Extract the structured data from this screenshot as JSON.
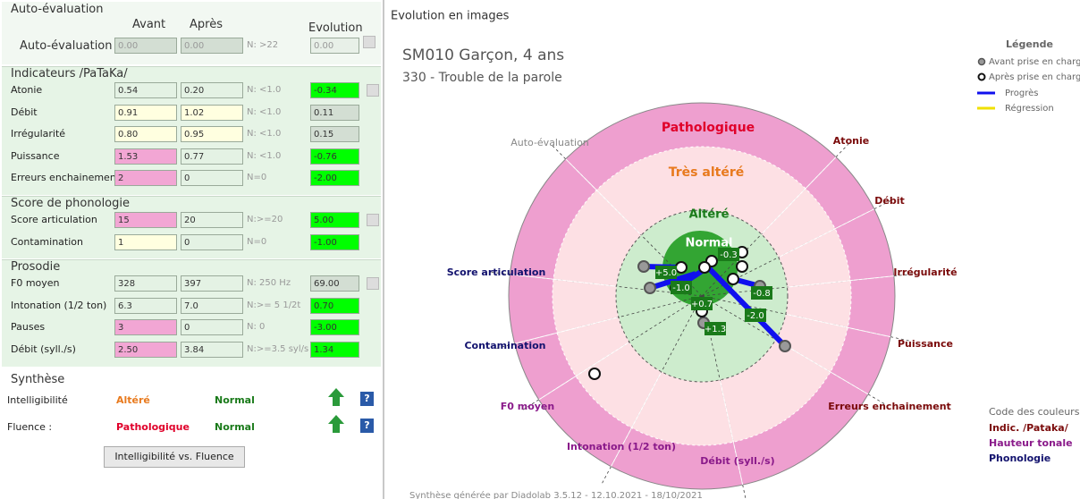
{
  "left": {
    "auto": {
      "title": "Auto-évaluation",
      "headers": [
        "Avant",
        "Après",
        "Evolution"
      ],
      "row": {
        "label": "Auto-évaluation",
        "cells": [
          "0.00",
          "0.00",
          "N: >22",
          "0.00"
        ],
        "colors": [
          "#d3ded3",
          "#d3ded3",
          "#e8f0e8"
        ]
      }
    },
    "sections": [
      {
        "title": "Indicateurs /PaTaKa/",
        "rows": [
          {
            "label": "Atonie",
            "cells": [
              "0.54",
              "0.20",
              "N: <1.0",
              "-0.34"
            ],
            "colors": [
              "#e4f2e4",
              "#e4f2e4",
              "#00ff00"
            ]
          },
          {
            "label": "Débit",
            "cells": [
              "0.91",
              "1.02",
              "N: <1.0",
              "0.11"
            ],
            "colors": [
              "#ffffe0",
              "#ffffe0",
              "#d3ded3"
            ]
          },
          {
            "label": "Irrégularité",
            "cells": [
              "0.80",
              "0.95",
              "N: <1.0",
              "0.15"
            ],
            "colors": [
              "#ffffe0",
              "#ffffe0",
              "#d3ded3"
            ]
          },
          {
            "label": "Puissance",
            "cells": [
              "1.53",
              "0.77",
              "N: <1.0",
              "-0.76"
            ],
            "colors": [
              "#f2a6d4",
              "#e4f2e4",
              "#00ff00"
            ]
          },
          {
            "label": "Erreurs enchainement",
            "cells": [
              "2",
              "0",
              "N=0",
              "-2.00"
            ],
            "colors": [
              "#f2a6d4",
              "#e4f2e4",
              "#00ff00"
            ]
          }
        ]
      },
      {
        "title": "Score de phonologie",
        "rows": [
          {
            "label": "Score articulation",
            "cells": [
              "15",
              "20",
              "N:>=20",
              "5.00"
            ],
            "colors": [
              "#f2a6d4",
              "#e4f2e4",
              "#00ff00"
            ]
          },
          {
            "label": "Contamination",
            "cells": [
              "1",
              "0",
              "N=0",
              "-1.00"
            ],
            "colors": [
              "#ffffe0",
              "#e4f2e4",
              "#00ff00"
            ]
          }
        ]
      },
      {
        "title": "Prosodie",
        "rows": [
          {
            "label": "F0 moyen",
            "cells": [
              "328",
              "397",
              "N: 250 Hz",
              "69.00"
            ],
            "colors": [
              "#e4f2e4",
              "#e4f2e4",
              "#d3ded3"
            ]
          },
          {
            "label": "Intonation (1/2 ton)",
            "cells": [
              "6.3",
              "7.0",
              "N:>= 5 1/2t",
              "0.70"
            ],
            "colors": [
              "#e4f2e4",
              "#e4f2e4",
              "#00ff00"
            ]
          },
          {
            "label": "Pauses",
            "cells": [
              "3",
              "0",
              "N: 0",
              "-3.00"
            ],
            "colors": [
              "#f2a6d4",
              "#e4f2e4",
              "#00ff00"
            ]
          },
          {
            "label": "Débit (syll./s)",
            "cells": [
              "2.50",
              "3.84",
              "N:>=3.5 syl/s",
              "1.34"
            ],
            "colors": [
              "#f2a6d4",
              "#e4f2e4",
              "#00ff00"
            ]
          }
        ]
      }
    ],
    "synthese": {
      "title": "Synthèse",
      "rows": [
        {
          "label": "Intelligibilité",
          "avant": "Altéré",
          "avant_color": "#e87a1e",
          "apres": "Normal",
          "apres_color": "#1a7a1a"
        },
        {
          "label": "Fluence :",
          "avant": "Pathologique",
          "avant_color": "#e0002a",
          "apres": "Normal",
          "apres_color": "#1a7a1a"
        }
      ],
      "help": "?",
      "button": "Intelligibilité vs. Fluence"
    }
  },
  "right": {
    "header": "Evolution en images",
    "title": "SM010 Garçon, 4 ans",
    "subtitle": "330 - Trouble de la parole",
    "zones": [
      "Pathologique",
      "Très altéré",
      "Altéré",
      "Normal"
    ],
    "axes": [
      {
        "label": "Auto-évaluation",
        "color": "#888888"
      },
      {
        "label": "Atonie",
        "color": "#7a0a0a"
      },
      {
        "label": "Débit",
        "color": "#7a0a0a"
      },
      {
        "label": "Irrégularité",
        "color": "#7a0a0a"
      },
      {
        "label": "Puissance",
        "color": "#7a0a0a"
      },
      {
        "label": "Erreurs enchainement",
        "color": "#7a0a0a"
      },
      {
        "label": "Débit (syll./s)",
        "color": "#8a1a8a"
      },
      {
        "label": "Intonation (1/2 ton)",
        "color": "#8a1a8a"
      },
      {
        "label": "F0 moyen",
        "color": "#8a1a8a"
      },
      {
        "label": "Contamination",
        "color": "#12126e"
      },
      {
        "label": "Score articulation",
        "color": "#12126e"
      }
    ],
    "evolution_labels": [
      "+5.0",
      "-1.0",
      "+0.7",
      "+1.3",
      "-0.8",
      "-2.0",
      "-0.3"
    ],
    "legend": {
      "title": "Légende",
      "items": [
        "Avant prise en charg",
        "Après prise en charg",
        "Progrès",
        "Régression"
      ]
    },
    "color_code": {
      "title": "Code des couleurs",
      "items": [
        {
          "label": "Indic. /Pataka/",
          "color": "#7a0a0a"
        },
        {
          "label": "Hauteur tonale",
          "color": "#8a1a8a"
        },
        {
          "label": "Phonologie",
          "color": "#12126e"
        }
      ]
    },
    "footer": "Synthèse générée par Diadolab 3.5.12 - 12.10.2021 - 18/10/2021"
  }
}
